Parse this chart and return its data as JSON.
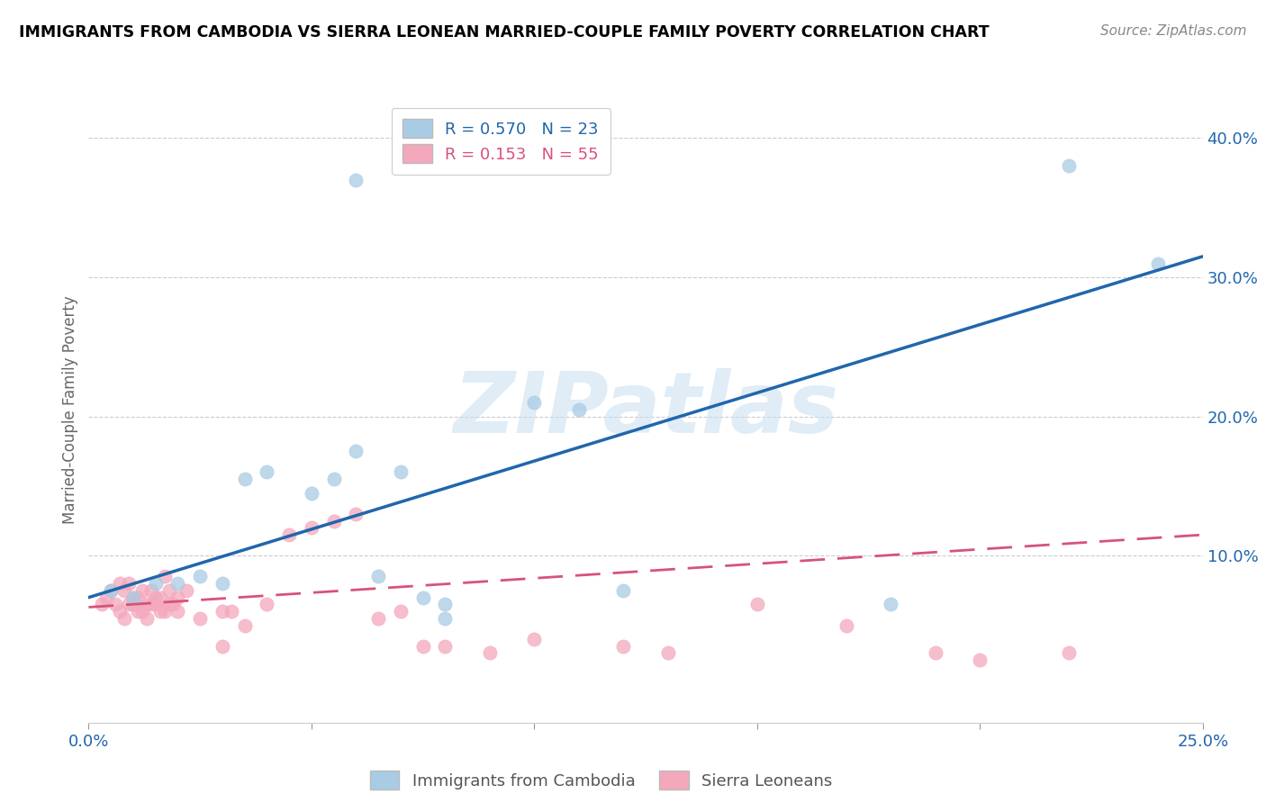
{
  "title": "IMMIGRANTS FROM CAMBODIA VS SIERRA LEONEAN MARRIED-COUPLE FAMILY POVERTY CORRELATION CHART",
  "source": "Source: ZipAtlas.com",
  "ylabel": "Married-Couple Family Poverty",
  "ytick_positions": [
    0.1,
    0.2,
    0.3,
    0.4
  ],
  "ytick_labels": [
    "10.0%",
    "20.0%",
    "30.0%",
    "40.0%"
  ],
  "xlim": [
    0.0,
    0.25
  ],
  "ylim": [
    -0.02,
    0.43
  ],
  "blue_color": "#a8cce4",
  "pink_color": "#f4a8bc",
  "blue_line_color": "#2166ac",
  "pink_line_color": "#d6537a",
  "R_blue": 0.57,
  "N_blue": 23,
  "R_pink": 0.153,
  "N_pink": 55,
  "legend_label_blue": "Immigrants from Cambodia",
  "legend_label_pink": "Sierra Leoneans",
  "watermark": "ZIPatlas",
  "blue_line_x0": 0.0,
  "blue_line_y0": 0.07,
  "blue_line_x1": 0.25,
  "blue_line_y1": 0.315,
  "pink_line_x0": 0.0,
  "pink_line_y0": 0.063,
  "pink_line_x1": 0.25,
  "pink_line_y1": 0.115,
  "blue_scatter_x": [
    0.005,
    0.01,
    0.015,
    0.02,
    0.025,
    0.03,
    0.035,
    0.04,
    0.05,
    0.055,
    0.06,
    0.065,
    0.07,
    0.075,
    0.08,
    0.1,
    0.11,
    0.12,
    0.18,
    0.22,
    0.24,
    0.06,
    0.08
  ],
  "blue_scatter_y": [
    0.075,
    0.07,
    0.08,
    0.08,
    0.085,
    0.08,
    0.155,
    0.16,
    0.145,
    0.155,
    0.175,
    0.085,
    0.16,
    0.07,
    0.065,
    0.21,
    0.205,
    0.075,
    0.065,
    0.38,
    0.31,
    0.37,
    0.055
  ],
  "pink_scatter_x": [
    0.003,
    0.004,
    0.005,
    0.006,
    0.007,
    0.007,
    0.008,
    0.008,
    0.009,
    0.009,
    0.01,
    0.01,
    0.011,
    0.011,
    0.012,
    0.012,
    0.013,
    0.013,
    0.014,
    0.014,
    0.015,
    0.015,
    0.016,
    0.016,
    0.017,
    0.017,
    0.018,
    0.018,
    0.019,
    0.02,
    0.02,
    0.022,
    0.025,
    0.03,
    0.03,
    0.032,
    0.035,
    0.04,
    0.045,
    0.05,
    0.055,
    0.06,
    0.065,
    0.07,
    0.075,
    0.08,
    0.09,
    0.1,
    0.12,
    0.13,
    0.15,
    0.17,
    0.19,
    0.2,
    0.22
  ],
  "pink_scatter_y": [
    0.065,
    0.07,
    0.075,
    0.065,
    0.06,
    0.08,
    0.055,
    0.075,
    0.08,
    0.065,
    0.065,
    0.07,
    0.07,
    0.06,
    0.06,
    0.075,
    0.055,
    0.065,
    0.075,
    0.065,
    0.065,
    0.07,
    0.07,
    0.06,
    0.06,
    0.085,
    0.065,
    0.075,
    0.065,
    0.06,
    0.07,
    0.075,
    0.055,
    0.035,
    0.06,
    0.06,
    0.05,
    0.065,
    0.115,
    0.12,
    0.125,
    0.13,
    0.055,
    0.06,
    0.035,
    0.035,
    0.03,
    0.04,
    0.035,
    0.03,
    0.065,
    0.05,
    0.03,
    0.025,
    0.03
  ]
}
